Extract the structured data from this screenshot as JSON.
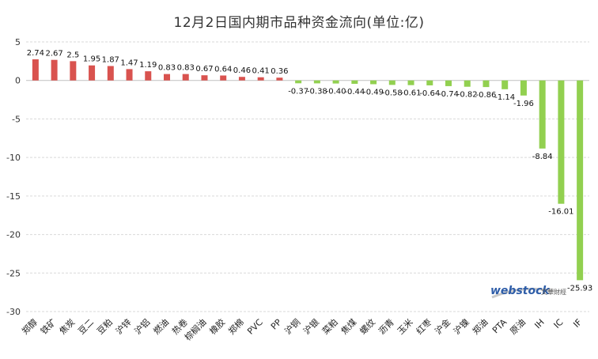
{
  "chart_data": {
    "type": "bar",
    "title": "12月2日国内期市品种资金流向(单位:亿)",
    "xlabel": "",
    "ylabel": "",
    "ylim": [
      -30,
      5
    ],
    "yticks": [
      5,
      0,
      -5,
      -10,
      -15,
      -20,
      -25,
      -30
    ],
    "grid": true,
    "legend": "none",
    "categories": [
      "郑醇",
      "铁矿",
      "焦炭",
      "豆二",
      "豆粕",
      "沪锌",
      "沪铝",
      "燃油",
      "热卷",
      "棕榈油",
      "橡胶",
      "郑棉",
      "PVC",
      "PP",
      "沪铜",
      "沪银",
      "菜粕",
      "焦煤",
      "螺纹",
      "沥青",
      "玉米",
      "红枣",
      "沪金",
      "沪镍",
      "郑油",
      "PTA",
      "原油",
      "IH",
      "IC",
      "IF"
    ],
    "values": [
      2.74,
      2.67,
      2.5,
      1.95,
      1.87,
      1.47,
      1.19,
      0.83,
      0.83,
      0.67,
      0.64,
      0.46,
      0.41,
      0.36,
      -0.37,
      -0.38,
      -0.4,
      -0.44,
      -0.49,
      -0.58,
      -0.61,
      -0.64,
      -0.74,
      -0.82,
      -0.86,
      -1.14,
      -1.96,
      -8.84,
      -16.01,
      -25.93
    ],
    "data_labels": [
      "2.74",
      "2.67",
      "2.5",
      "1.95",
      "1.87",
      "1.47",
      "1.19",
      "0.83",
      "0.83",
      "0.67",
      "0.64",
      "0.46",
      "0.41",
      "0.36",
      "-0.37",
      "-0.38",
      "-0.40",
      "-0.44",
      "-0.49",
      "-0.58",
      "-0.61",
      "-0.64",
      "-0.74",
      "-0.82",
      "-0.86",
      "-1.14",
      "-1.96",
      "-8.84",
      "-16.01",
      "-25.93"
    ],
    "colors": {
      "positive": "#d9534f",
      "negative": "#92d050"
    }
  },
  "watermark": {
    "brand": "webstock",
    "subtitle": "文華財經"
  }
}
